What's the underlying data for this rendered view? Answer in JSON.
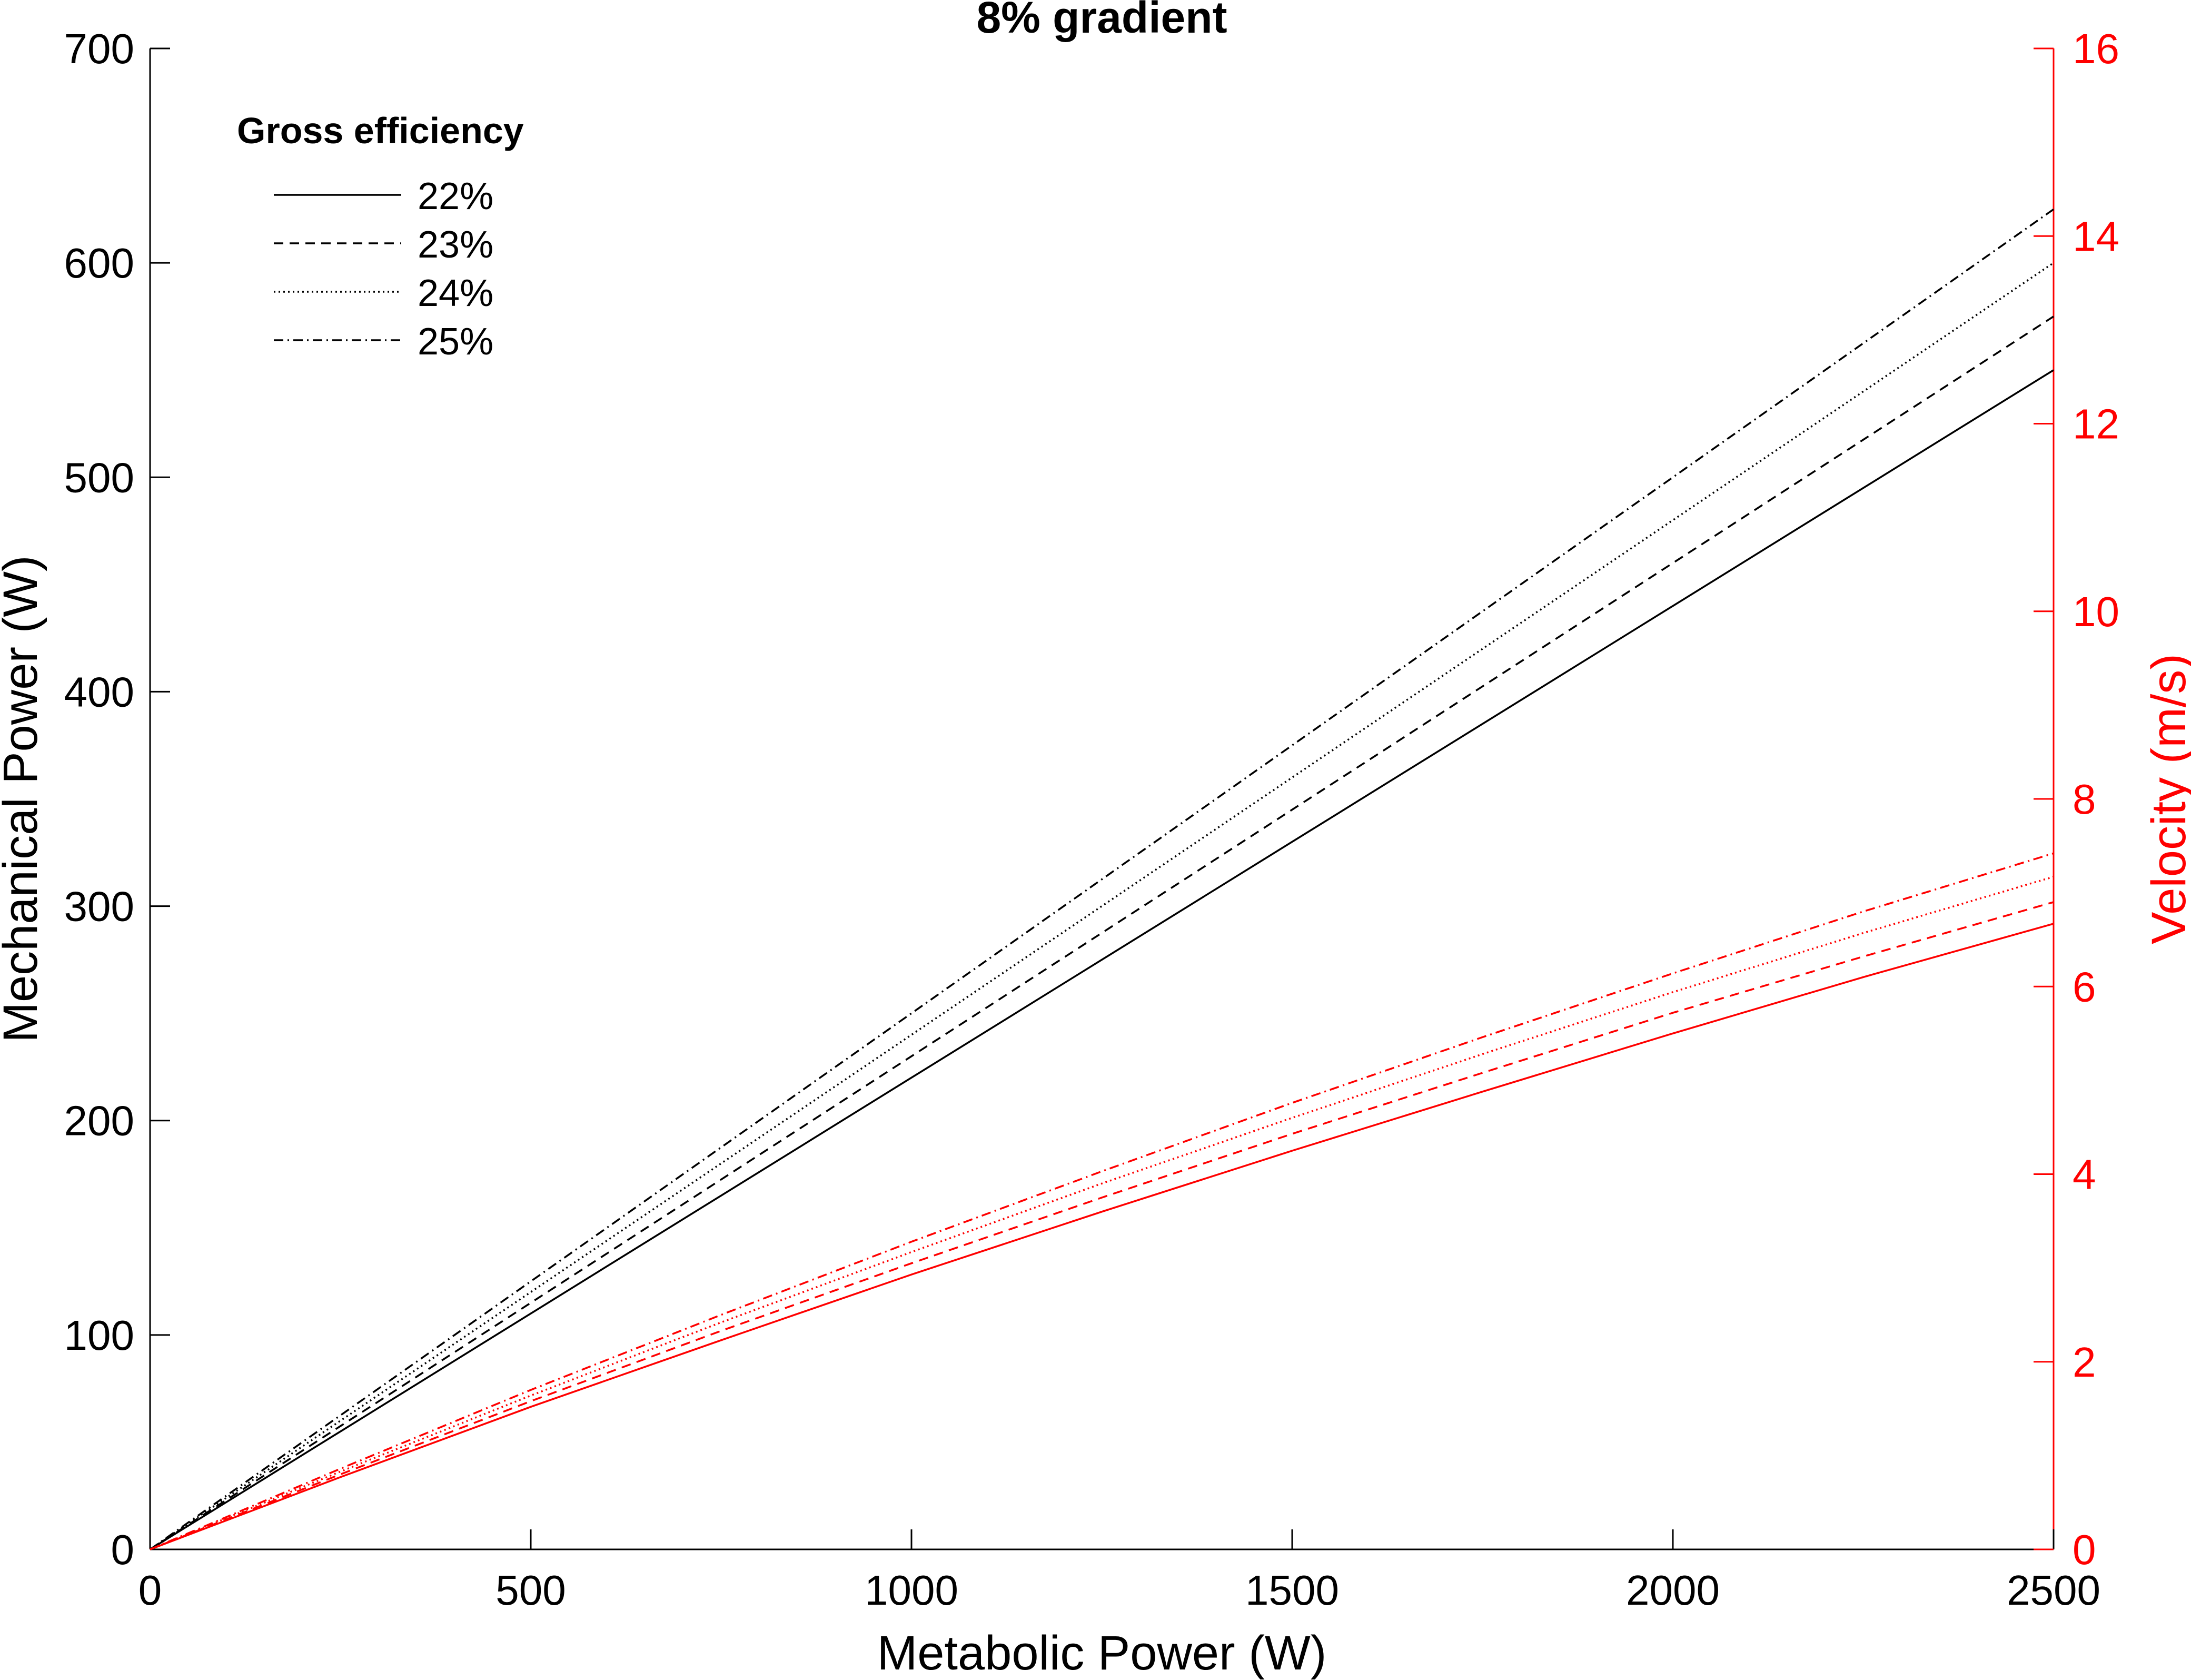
{
  "chart_data": {
    "type": "line",
    "title": "8% gradient",
    "xlabel": "Metabolic Power (W)",
    "ylabel": "Mechanical Power (W)",
    "y2label": "Velocity (m/s)",
    "xlim": [
      0,
      2500
    ],
    "ylim": [
      0,
      700
    ],
    "y2lim": [
      0,
      16
    ],
    "xticks": [
      "0",
      "500",
      "1000",
      "1500",
      "2000",
      "2500"
    ],
    "yticks": [
      "0",
      "100",
      "200",
      "300",
      "400",
      "500",
      "600",
      "700"
    ],
    "y2ticks": [
      "0",
      "2",
      "4",
      "6",
      "8",
      "10",
      "12",
      "14",
      "16"
    ],
    "grid": false,
    "legend": {
      "title": "Gross efficiency",
      "placement": "top-left",
      "entries": [
        "22%",
        "23%",
        "24%",
        "25%"
      ]
    },
    "colors": {
      "left_axis": "#000000",
      "right_axis": "#ff0000"
    },
    "x": [
      0,
      250,
      500,
      750,
      1000,
      1250,
      1500,
      1750,
      2000,
      2250,
      2500
    ],
    "series": [
      {
        "name": "22%",
        "axis": "left",
        "dash": "solid",
        "color": "#000000",
        "values": [
          0,
          55,
          110,
          165,
          220,
          275,
          330,
          385,
          440,
          495,
          550
        ]
      },
      {
        "name": "23%",
        "axis": "left",
        "dash": "dashed",
        "color": "#000000",
        "values": [
          0,
          57.5,
          115,
          172.5,
          230,
          287.5,
          345,
          402.5,
          460,
          517.5,
          575
        ]
      },
      {
        "name": "24%",
        "axis": "left",
        "dash": "dotted",
        "color": "#000000",
        "values": [
          0,
          60,
          120,
          180,
          240,
          300,
          360,
          420,
          480,
          540,
          600
        ]
      },
      {
        "name": "25%",
        "axis": "left",
        "dash": "dashdot",
        "color": "#000000",
        "values": [
          0,
          62.5,
          125,
          187.5,
          250,
          312.5,
          375,
          437.5,
          500,
          562.5,
          625
        ]
      },
      {
        "name": "22%",
        "axis": "right",
        "dash": "solid",
        "color": "#ff0000",
        "values": [
          0,
          0.77,
          1.52,
          2.23,
          2.93,
          3.6,
          4.25,
          4.88,
          5.5,
          6.1,
          6.67
        ]
      },
      {
        "name": "23%",
        "axis": "right",
        "dash": "dashed",
        "color": "#ff0000",
        "values": [
          0,
          0.8,
          1.58,
          2.33,
          3.05,
          3.75,
          4.43,
          5.08,
          5.72,
          6.32,
          6.9
        ]
      },
      {
        "name": "24%",
        "axis": "right",
        "dash": "dotted",
        "color": "#ff0000",
        "values": [
          0,
          0.83,
          1.64,
          2.42,
          3.17,
          3.9,
          4.6,
          5.28,
          5.94,
          6.57,
          7.17
        ]
      },
      {
        "name": "25%",
        "axis": "right",
        "dash": "dashdot",
        "color": "#ff0000",
        "values": [
          0,
          0.86,
          1.7,
          2.5,
          3.28,
          4.03,
          4.76,
          5.46,
          6.14,
          6.8,
          7.42
        ]
      }
    ]
  }
}
